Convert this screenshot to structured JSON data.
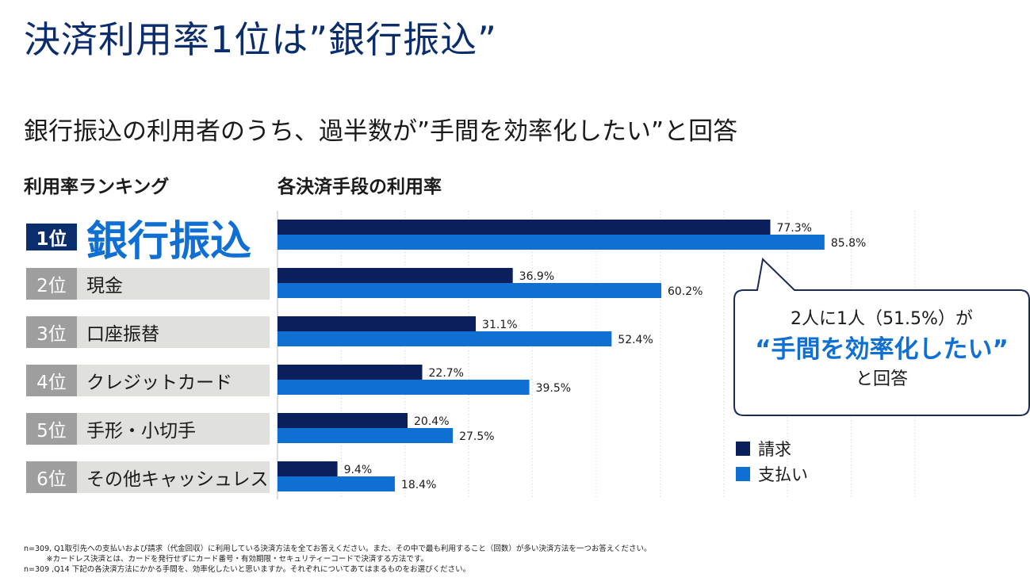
{
  "title": "決済利用率1位は”銀行振込”",
  "subtitle": "銀行振込の利用者のうち、過半数が”手間を効率化したい”と回答",
  "ranking": {
    "heading": "利用率ランキング",
    "items": [
      {
        "rank": "1位",
        "name": "銀行振込"
      },
      {
        "rank": "2位",
        "name": "現金"
      },
      {
        "rank": "3位",
        "name": "口座振替"
      },
      {
        "rank": "4位",
        "name": "クレジットカード"
      },
      {
        "rank": "5位",
        "name": "手形・小切手"
      },
      {
        "rank": "6位",
        "name": "その他キャッシュレス"
      }
    ]
  },
  "chart_heading": "各決済手段の利用率",
  "chart_data": {
    "type": "bar",
    "orientation": "horizontal",
    "categories": [
      "銀行振込",
      "現金",
      "口座振替",
      "クレジットカード",
      "手形・小切手",
      "その他キャッシュレス"
    ],
    "series": [
      {
        "name": "請求",
        "values": [
          77.3,
          36.9,
          31.1,
          22.7,
          20.4,
          9.4
        ],
        "labels": [
          "77.3%",
          "36.9%",
          "31.1%",
          "22.7%",
          "20.4%",
          "9.4%"
        ]
      },
      {
        "name": "支払い",
        "values": [
          85.8,
          60.2,
          52.4,
          39.5,
          27.5,
          18.4
        ],
        "labels": [
          "85.8%",
          "60.2%",
          "52.4%",
          "39.5%",
          "27.5%",
          "18.4%"
        ]
      }
    ],
    "xlim": [
      0,
      100
    ],
    "grid": true,
    "legend": "bottom-right"
  },
  "legend": {
    "items": [
      "請求",
      "支払い"
    ]
  },
  "callout": {
    "line1": "2人に1人（51.5%）が",
    "line2": "“手間を効率化したい”",
    "line3": "と回答"
  },
  "footnotes": [
    "n=309, Q1取引先への支払いおよび請求（代金回収）に利用している決済方法を全てお答えください。また、その中で最も利用すること（回数）が多い決済方法を一つお答えください。",
    "　　　※カードレス決済とは、カードを発行せずにカード番号・有効期限・セキュリティーコードで決済する方法です。",
    "n=309 ,Q14 下記の各決済方法にかかる手間を、効率化したいと思いますか。それぞれについてあてはまるものをお選びください。"
  ],
  "colors": {
    "seikyu": "#0b1f5c",
    "shiharai": "#0f6fd2",
    "title": "#0b2d6b",
    "accent": "#0f6fd2"
  }
}
